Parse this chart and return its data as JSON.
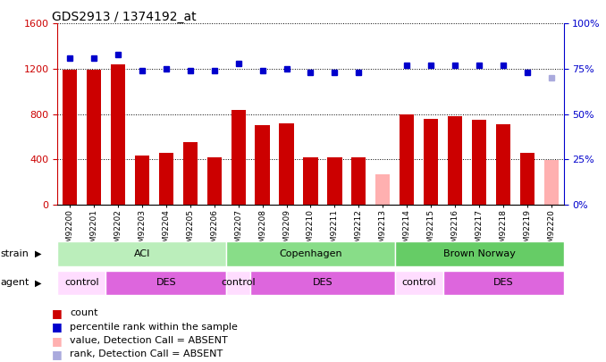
{
  "title": "GDS2913 / 1374192_at",
  "samples": [
    "GSM92200",
    "GSM92201",
    "GSM92202",
    "GSM92203",
    "GSM92204",
    "GSM92205",
    "GSM92206",
    "GSM92207",
    "GSM92208",
    "GSM92209",
    "GSM92210",
    "GSM92211",
    "GSM92212",
    "GSM92213",
    "GSM92214",
    "GSM92215",
    "GSM92216",
    "GSM92217",
    "GSM92218",
    "GSM92219",
    "GSM92220"
  ],
  "counts": [
    1190,
    1190,
    1240,
    430,
    460,
    550,
    420,
    840,
    700,
    720,
    420,
    420,
    420,
    270,
    800,
    760,
    780,
    750,
    710,
    460,
    390
  ],
  "ranks": [
    81,
    81,
    83,
    74,
    75,
    74,
    74,
    78,
    74,
    75,
    73,
    73,
    73,
    null,
    77,
    77,
    77,
    77,
    77,
    73,
    null
  ],
  "absent_count": [
    null,
    null,
    null,
    null,
    null,
    null,
    null,
    null,
    null,
    null,
    null,
    null,
    null,
    270,
    null,
    null,
    null,
    null,
    null,
    null,
    390
  ],
  "absent_rank": [
    null,
    null,
    null,
    null,
    null,
    null,
    null,
    null,
    null,
    null,
    null,
    null,
    null,
    null,
    null,
    null,
    null,
    null,
    null,
    null,
    70
  ],
  "ylim_left": [
    0,
    1600
  ],
  "ylim_right": [
    0,
    100
  ],
  "yticks_left": [
    0,
    400,
    800,
    1200,
    1600
  ],
  "yticks_right": [
    0,
    25,
    50,
    75,
    100
  ],
  "bar_color": "#cc0000",
  "absent_bar_color": "#ffb0b0",
  "rank_color": "#0000cc",
  "absent_rank_color": "#aaaadd",
  "strain_groups": [
    {
      "label": "ACI",
      "start": 0,
      "end": 7,
      "color": "#bbeebb"
    },
    {
      "label": "Copenhagen",
      "start": 7,
      "end": 14,
      "color": "#88dd88"
    },
    {
      "label": "Brown Norway",
      "start": 14,
      "end": 21,
      "color": "#66cc66"
    }
  ],
  "agent_groups": [
    {
      "label": "control",
      "start": 0,
      "end": 2,
      "color": "#ffddff"
    },
    {
      "label": "DES",
      "start": 2,
      "end": 7,
      "color": "#dd66dd"
    },
    {
      "label": "control",
      "start": 7,
      "end": 8,
      "color": "#ffddff"
    },
    {
      "label": "DES",
      "start": 8,
      "end": 14,
      "color": "#dd66dd"
    },
    {
      "label": "control",
      "start": 14,
      "end": 16,
      "color": "#ffddff"
    },
    {
      "label": "DES",
      "start": 16,
      "end": 21,
      "color": "#dd66dd"
    }
  ]
}
